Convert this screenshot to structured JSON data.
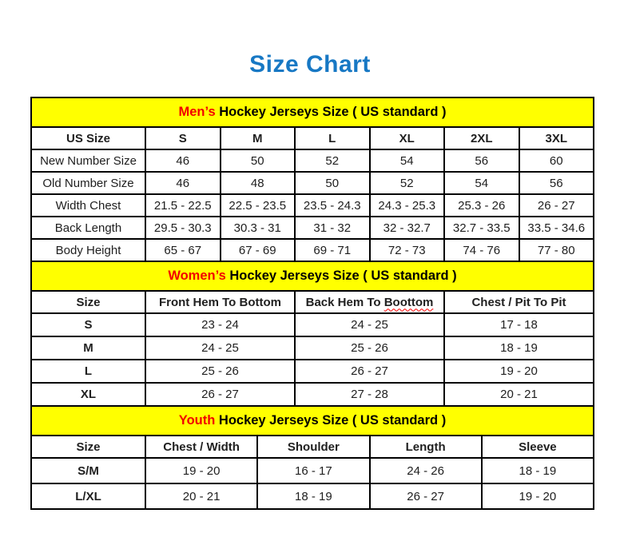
{
  "page_title": "Size Chart",
  "colors": {
    "title_blue": "#1778c4",
    "band_yellow": "#ffff00",
    "accent_red": "#f20000",
    "squiggle_red": "#ff0000",
    "border_black": "#000000",
    "text": "#202020"
  },
  "tables": {
    "mens": {
      "band": {
        "accent": "Men’s",
        "rest": " Hockey Jerseys Size ( US standard )"
      },
      "headers": [
        "US Size",
        "S",
        "M",
        "L",
        "XL",
        "2XL",
        "3XL"
      ],
      "rows": [
        {
          "label": "New Number Size",
          "values": [
            "46",
            "50",
            "52",
            "54",
            "56",
            "60"
          ]
        },
        {
          "label": "Old Number Size",
          "values": [
            "46",
            "48",
            "50",
            "52",
            "54",
            "56"
          ]
        },
        {
          "label": "Width Chest",
          "values": [
            "21.5 - 22.5",
            "22.5 - 23.5",
            "23.5 - 24.3",
            "24.3 - 25.3",
            "25.3 - 26",
            "26 - 27"
          ]
        },
        {
          "label": "Back Length",
          "values": [
            "29.5 - 30.3",
            "30.3 - 31",
            "31 - 32",
            "32 - 32.7",
            "32.7 - 33.5",
            "33.5 - 34.6"
          ]
        },
        {
          "label": "Body Height",
          "values": [
            "65 - 67",
            "67 - 69",
            "69 - 71",
            "72 - 73",
            "74 - 76",
            "77 - 80"
          ]
        }
      ]
    },
    "womens": {
      "band": {
        "accent": "Women’s",
        "rest": " Hockey Jerseys Size ( US standard )"
      },
      "headers": {
        "size": "Size",
        "front": "Front Hem To Bottom",
        "back_prefix": "Back Hem To ",
        "back_wavy": "Boottom",
        "chest": "Chest / Pit To Pit"
      },
      "rows": [
        {
          "size": "S",
          "values": [
            "23 - 24",
            "24 - 25",
            "17 - 18"
          ]
        },
        {
          "size": "M",
          "values": [
            "24 - 25",
            "25 - 26",
            "18 - 19"
          ]
        },
        {
          "size": "L",
          "values": [
            "25 - 26",
            "26 - 27",
            "19 - 20"
          ]
        },
        {
          "size": "XL",
          "values": [
            "26 - 27",
            "27 - 28",
            "20 - 21"
          ]
        }
      ]
    },
    "youth": {
      "band": {
        "accent": "Youth",
        "rest": " Hockey Jerseys Size ( US standard )"
      },
      "headers": [
        "Size",
        "Chest / Width",
        "Shoulder",
        "Length",
        "Sleeve"
      ],
      "rows": [
        {
          "size": "S/M",
          "values": [
            "19 - 20",
            "16 - 17",
            "24 - 26",
            "18 - 19"
          ]
        },
        {
          "size": "L/XL",
          "values": [
            "20 - 21",
            "18 - 19",
            "26 - 27",
            "19 - 20"
          ]
        }
      ]
    }
  }
}
